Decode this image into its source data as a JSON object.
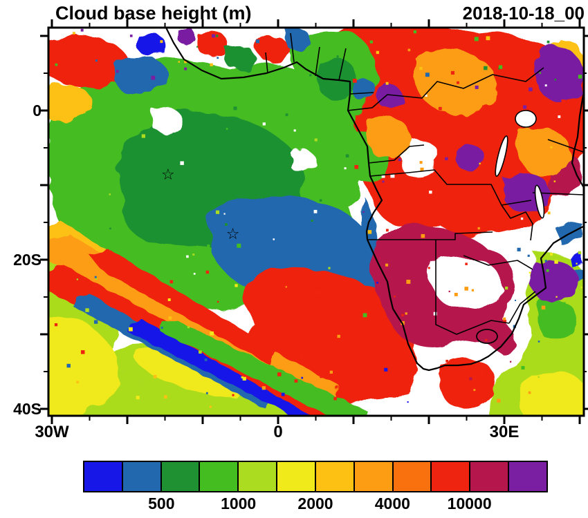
{
  "header": {
    "title": "Cloud base height (m)",
    "timestamp": "2018-10-18_00"
  },
  "axes": {
    "y_ticks": [
      {
        "label": "0",
        "lat": 0
      },
      {
        "label": "20S",
        "lat": -20
      },
      {
        "label": "40S",
        "lat": -40
      }
    ],
    "x_ticks": [
      {
        "label": "30W",
        "lon": -30
      },
      {
        "label": "0",
        "lon": 0
      },
      {
        "label": "30E",
        "lon": 30
      }
    ]
  },
  "colorbar": {
    "colors": [
      "#1717e8",
      "#2268ae",
      "#1f9132",
      "#44bd20",
      "#abdc1f",
      "#f0ea1a",
      "#fdc113",
      "#fd9d13",
      "#f9700f",
      "#ef2410",
      "#b5164c",
      "#7a1fa2"
    ],
    "tick_labels": [
      {
        "text": "500",
        "boundary_index": 2
      },
      {
        "text": "1000",
        "boundary_index": 4
      },
      {
        "text": "2000",
        "boundary_index": 6
      },
      {
        "text": "4000",
        "boundary_index": 8
      },
      {
        "text": "10000",
        "boundary_index": 10
      }
    ]
  },
  "chart_data": {
    "type": "heatmap",
    "variable": "Cloud base height",
    "units": "m",
    "title": "Cloud base height (m)",
    "timestamp": "2018-10-18_00",
    "projection": "lat-lon map, Africa / South Atlantic",
    "domain": {
      "lon_min": -30.5,
      "lon_max": 40.5,
      "lat_min": -41,
      "lat_max": 11
    },
    "x_tick_labels": [
      "30W",
      "0",
      "30E"
    ],
    "y_tick_labels": [
      "0",
      "20S",
      "40S"
    ],
    "legend_position": "bottom",
    "colorbar_labeled_levels": [
      500,
      1000,
      2000,
      4000,
      10000
    ],
    "n_colors": 12,
    "palette": [
      "#1717e8",
      "#2268ae",
      "#1f9132",
      "#44bd20",
      "#abdc1f",
      "#f0ea1a",
      "#fdc113",
      "#fd9d13",
      "#f9700f",
      "#ef2410",
      "#b5164c",
      "#7a1fa2"
    ],
    "markers": [
      {
        "shape": "star",
        "lon": -14.6,
        "lat": -8.5
      },
      {
        "shape": "star",
        "lon": -6.0,
        "lat": -16.5
      }
    ],
    "field_summary": [
      {
        "region": "central South Atlantic",
        "value": "low cloud base ~500-1000 m (green) over a broad area"
      },
      {
        "region": "stratocumulus deck ~10W-5E, 12-25S",
        "value": "cloud base below ~500-1000 m (blue tongue reaching the Namibian coast)"
      },
      {
        "region": "southwest Atlantic 30-5W, 25-40S",
        "value": "banded streaks of 1000-10000 m bases (yellow/orange/red) with thin blue bands"
      },
      {
        "region": "Gulf of Guinea coast",
        "value": "low bases 500-1000 m (green) mixed with high-base patches"
      },
      {
        "region": "central/eastern Africa",
        "value": "high cloud bases 4000-10000 m (red/orange) with >10000 m patches (purple)"
      },
      {
        "region": "Angola-Namibia-Botswana",
        "value": "very high bases ~10000 m (magenta) with clear white gaps"
      },
      {
        "region": "south-central ocean near 0-10E, 35S",
        "value": "large red area of 4000-10000 m bases"
      }
    ]
  }
}
